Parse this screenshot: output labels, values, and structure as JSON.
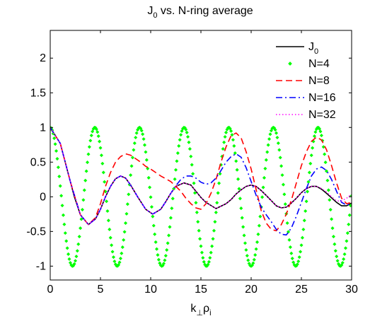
{
  "chart_data": {
    "type": "line",
    "title": "J",
    "title_subscript": "0",
    "title_rest": " vs. N-ring average",
    "xlabel_main": "k",
    "xlabel_sub1": "⊥",
    "xlabel_mid": "ρ",
    "xlabel_sub2": "i",
    "ylabel": "",
    "xlim": [
      0,
      30
    ],
    "ylim": [
      -1.2,
      2.4
    ],
    "xticks": [
      0,
      5,
      10,
      15,
      20,
      25,
      30
    ],
    "xtick_labels": [
      "0",
      "5",
      "10",
      "15",
      "20",
      "25",
      "30"
    ],
    "yticks": [
      -1,
      -0.5,
      0,
      0.5,
      1,
      1.5,
      2
    ],
    "ytick_labels": [
      "-1",
      "-0.5",
      "0",
      "0.5",
      "1",
      "1.5",
      "2"
    ],
    "grid": false,
    "legend_position": "top-right",
    "series": [
      {
        "name": "J",
        "name_sub": "0",
        "color": "#000000",
        "style": "solid",
        "x": [
          0,
          1,
          2,
          2.4,
          3,
          3.8,
          4.5,
          5,
          5.5,
          6,
          6.5,
          7,
          7.5,
          8,
          8.7,
          9.5,
          10.2,
          11,
          11.5,
          12,
          12.5,
          13.3,
          14,
          14.5,
          15,
          15.5,
          16.5,
          17.5,
          18,
          18.5,
          19,
          19.5,
          20,
          20.5,
          21,
          21.5,
          22.5,
          23,
          23.5,
          24,
          24.5,
          25,
          25.5,
          26,
          26.5,
          27,
          27.5,
          28.5,
          29,
          29.5,
          30
        ],
        "y": [
          1,
          0.77,
          0.22,
          0,
          -0.26,
          -0.4,
          -0.32,
          -0.18,
          0,
          0.15,
          0.26,
          0.3,
          0.27,
          0.17,
          0,
          -0.18,
          -0.25,
          -0.18,
          -0.07,
          0.05,
          0.15,
          0.2,
          0.17,
          0.08,
          -0.01,
          -0.08,
          -0.17,
          -0.1,
          -0.04,
          0.04,
          0.1,
          0.15,
          0.17,
          0.15,
          0.09,
          0.02,
          -0.13,
          -0.16,
          -0.15,
          -0.09,
          -0.02,
          0.06,
          0.12,
          0.15,
          0.15,
          0.11,
          0.05,
          -0.08,
          -0.13,
          -0.13,
          -0.09
        ]
      },
      {
        "name": "N=4",
        "color": "#00ff00",
        "style": "dots",
        "function": "cos(x/sqrt(2))^2*2-1",
        "x_start": 0,
        "x_end": 30,
        "n_points": 301
      },
      {
        "name": "N=8",
        "color": "#ff0000",
        "style": "dashed",
        "x": [
          0,
          1,
          2,
          3,
          3.8,
          4.5,
          5,
          5.5,
          6,
          6.5,
          7,
          7.5,
          8,
          8.5,
          9,
          9.5,
          10,
          10.5,
          11,
          11.5,
          12,
          12.5,
          13,
          13.5,
          14,
          14.5,
          15,
          15.5,
          16,
          16.5,
          17,
          17.5,
          18,
          18.5,
          19,
          19.5,
          20,
          20.5,
          21,
          21.5,
          22,
          22.5,
          23,
          23.5,
          24,
          24.5,
          25,
          25.5,
          26,
          26.5,
          27,
          27.5,
          28,
          28.5,
          29,
          29.5,
          30
        ],
        "y": [
          1,
          0.77,
          0.22,
          -0.26,
          -0.4,
          -0.3,
          -0.1,
          0.15,
          0.35,
          0.5,
          0.58,
          0.62,
          0.6,
          0.55,
          0.5,
          0.44,
          0.4,
          0.35,
          0.3,
          0.26,
          0.22,
          0.15,
          0.08,
          -0.02,
          -0.1,
          -0.16,
          -0.18,
          -0.1,
          0.05,
          0.25,
          0.5,
          0.72,
          0.88,
          0.92,
          0.85,
          0.65,
          0.4,
          0.1,
          -0.2,
          -0.38,
          -0.47,
          -0.49,
          -0.4,
          -0.25,
          -0.05,
          0.2,
          0.45,
          0.65,
          0.8,
          0.86,
          0.82,
          0.68,
          0.45,
          0.2,
          -0.02,
          -0.1,
          -0.08
        ]
      },
      {
        "name": "N=16",
        "color": "#0000ff",
        "style": "dashdot",
        "x": [
          0,
          1,
          2,
          3,
          3.8,
          4.5,
          5,
          5.5,
          6,
          6.5,
          7,
          7.5,
          8,
          8.7,
          9.5,
          10.2,
          11,
          11.5,
          12,
          12.5,
          13,
          13.5,
          14,
          14.5,
          15,
          15.5,
          16,
          16.5,
          17,
          17.5,
          18,
          18.5,
          19,
          19.5,
          20,
          20.5,
          21,
          21.5,
          22,
          22.5,
          23,
          23.5,
          24,
          24.5,
          25,
          25.5,
          26,
          26.5,
          27,
          27.5,
          28,
          28.5,
          29,
          29.5,
          30
        ],
        "y": [
          1,
          0.77,
          0.22,
          -0.26,
          -0.4,
          -0.32,
          -0.18,
          0,
          0.15,
          0.26,
          0.3,
          0.27,
          0.17,
          0,
          -0.18,
          -0.25,
          -0.18,
          -0.07,
          0.05,
          0.16,
          0.25,
          0.3,
          0.3,
          0.27,
          0.21,
          0.18,
          0.2,
          0.27,
          0.38,
          0.5,
          0.58,
          0.62,
          0.57,
          0.42,
          0.22,
          0.02,
          -0.15,
          -0.26,
          -0.36,
          -0.47,
          -0.54,
          -0.55,
          -0.45,
          -0.28,
          -0.08,
          0.12,
          0.3,
          0.4,
          0.43,
          0.38,
          0.25,
          0.08,
          -0.08,
          -0.12,
          -0.1
        ]
      },
      {
        "name": "N=32",
        "color": "#ff00ff",
        "style": "dotted",
        "x": [
          0,
          1,
          2,
          3,
          3.8,
          4.5,
          5,
          5.5,
          6,
          6.5,
          7,
          7.5,
          8,
          8.7,
          9.5,
          10.2,
          11,
          11.5,
          12,
          12.5,
          13.3,
          14,
          14.5,
          15,
          15.5,
          16.5,
          17.5,
          18,
          18.5,
          19,
          19.5,
          20,
          20.5,
          21,
          21.5,
          22.5,
          23,
          23.5,
          24,
          24.5,
          25,
          25.5,
          26,
          26.5,
          27,
          27.5,
          28,
          28.5,
          29,
          29.5,
          30
        ],
        "y": [
          1,
          0.77,
          0.22,
          -0.26,
          -0.4,
          -0.32,
          -0.18,
          0,
          0.15,
          0.26,
          0.3,
          0.27,
          0.17,
          0,
          -0.18,
          -0.25,
          -0.18,
          -0.07,
          0.05,
          0.15,
          0.2,
          0.17,
          0.08,
          -0.01,
          -0.08,
          -0.17,
          -0.1,
          -0.04,
          0.04,
          0.1,
          0.15,
          0.17,
          0.15,
          0.09,
          0.02,
          -0.13,
          -0.16,
          -0.15,
          -0.09,
          -0.02,
          0.06,
          0.12,
          0.15,
          0.15,
          0.12,
          0.07,
          0.0,
          -0.06,
          -0.06,
          -0.02,
          0.04
        ]
      }
    ]
  }
}
